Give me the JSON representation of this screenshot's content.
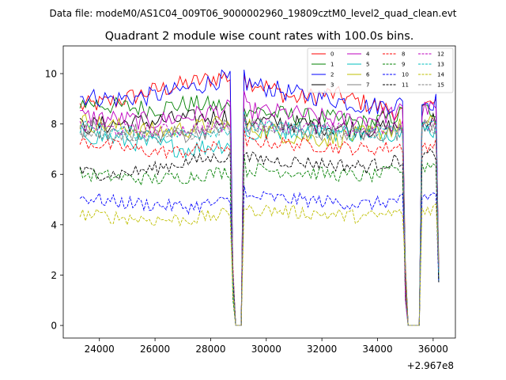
{
  "chart_data": {
    "type": "line",
    "suptitle": "Data file: modeM0/AS1C04_009T06_9000002960_19809cztM0_level2_quad_clean.evt",
    "title": "Quadrant 2 module wise count rates with 100.0s bins.",
    "xlabel": "",
    "ylabel": "",
    "x_offset_label": "+2.967e8",
    "xlim": [
      22700,
      36800
    ],
    "ylim": [
      -0.5,
      11.1
    ],
    "xticks": [
      24000,
      26000,
      28000,
      30000,
      32000,
      34000,
      36000
    ],
    "xtick_labels": [
      "24000",
      "26000",
      "28000",
      "30000",
      "32000",
      "34000",
      "36000"
    ],
    "yticks": [
      0,
      2,
      4,
      6,
      8,
      10
    ],
    "ytick_labels": [
      "0",
      "2",
      "4",
      "6",
      "8",
      "10"
    ],
    "x_start": 23300,
    "x_step": 100,
    "gap1": {
      "from": 28900,
      "to": 29100
    },
    "gap2": {
      "from": 35100,
      "to": 35500
    },
    "series": [
      {
        "name": "0",
        "color": "#ff0000",
        "dash": false,
        "levels": [
          8.7,
          8.9,
          9.3,
          9.6,
          9.9,
          9.6,
          9.0,
          9.2,
          8.8,
          8.4,
          8.9
        ]
      },
      {
        "name": "1",
        "color": "#008000",
        "dash": false,
        "levels": [
          8.9,
          8.7,
          8.6,
          8.8,
          8.7,
          8.5,
          8.3,
          8.2,
          8.0,
          8.4,
          8.6
        ]
      },
      {
        "name": "2",
        "color": "#0000ff",
        "dash": false,
        "levels": [
          9.1,
          9.0,
          9.1,
          9.4,
          9.8,
          9.5,
          9.2,
          9.0,
          8.7,
          8.8,
          8.9
        ]
      },
      {
        "name": "3",
        "color": "#000000",
        "dash": false,
        "levels": [
          7.9,
          8.0,
          8.1,
          8.2,
          8.3,
          8.1,
          8.0,
          7.9,
          7.8,
          7.9,
          8.2
        ]
      },
      {
        "name": "4",
        "color": "#bf00bf",
        "dash": false,
        "levels": [
          8.3,
          8.2,
          8.1,
          8.3,
          8.6,
          8.5,
          8.4,
          8.2,
          8.2,
          8.5,
          8.6
        ]
      },
      {
        "name": "5",
        "color": "#00bfbf",
        "dash": false,
        "levels": [
          7.6,
          7.4,
          7.2,
          7.0,
          7.2,
          7.6,
          7.8,
          7.7,
          7.6,
          7.7,
          7.8
        ]
      },
      {
        "name": "6",
        "color": "#bfbf00",
        "dash": false,
        "levels": [
          8.1,
          7.9,
          7.7,
          7.8,
          8.0,
          7.8,
          7.5,
          7.4,
          7.6,
          7.9,
          8.0
        ]
      },
      {
        "name": "7",
        "color": "#808080",
        "dash": false,
        "levels": [
          7.8,
          7.7,
          7.6,
          7.6,
          7.9,
          7.9,
          7.8,
          7.7,
          7.6,
          7.7,
          7.9
        ]
      },
      {
        "name": "8",
        "color": "#ff0000",
        "dash": true,
        "levels": [
          7.3,
          7.1,
          6.9,
          6.9,
          7.1,
          7.3,
          7.2,
          7.1,
          7.0,
          7.1,
          7.2
        ]
      },
      {
        "name": "9",
        "color": "#008000",
        "dash": true,
        "levels": [
          6.0,
          5.9,
          5.8,
          5.9,
          6.1,
          6.2,
          6.1,
          6.0,
          5.9,
          6.2,
          6.4
        ]
      },
      {
        "name": "10",
        "color": "#0000ff",
        "dash": true,
        "levels": [
          5.1,
          4.9,
          4.8,
          4.7,
          4.9,
          5.1,
          5.0,
          4.9,
          4.8,
          5.0,
          5.2
        ]
      },
      {
        "name": "11",
        "color": "#000000",
        "dash": true,
        "levels": [
          6.1,
          6.0,
          6.2,
          6.5,
          6.7,
          6.6,
          6.5,
          6.4,
          6.3,
          6.6,
          6.8
        ]
      },
      {
        "name": "12",
        "color": "#bf00bf",
        "dash": true,
        "levels": [
          7.9,
          7.8,
          7.7,
          7.8,
          7.9,
          8.0,
          7.9,
          7.8,
          7.7,
          7.9,
          8.0
        ]
      },
      {
        "name": "13",
        "color": "#00bfbf",
        "dash": true,
        "levels": [
          7.9,
          7.7,
          7.6,
          7.6,
          7.8,
          7.9,
          7.8,
          7.7,
          7.6,
          7.8,
          7.9
        ]
      },
      {
        "name": "14",
        "color": "#bfbf00",
        "dash": true,
        "levels": [
          4.4,
          4.3,
          4.2,
          4.2,
          4.4,
          4.6,
          4.5,
          4.4,
          4.3,
          4.5,
          4.7
        ]
      },
      {
        "name": "15",
        "color": "#808080",
        "dash": true,
        "levels": [
          7.7,
          7.6,
          7.5,
          7.6,
          7.8,
          7.9,
          7.8,
          7.7,
          7.6,
          7.8,
          7.9
        ]
      }
    ]
  }
}
